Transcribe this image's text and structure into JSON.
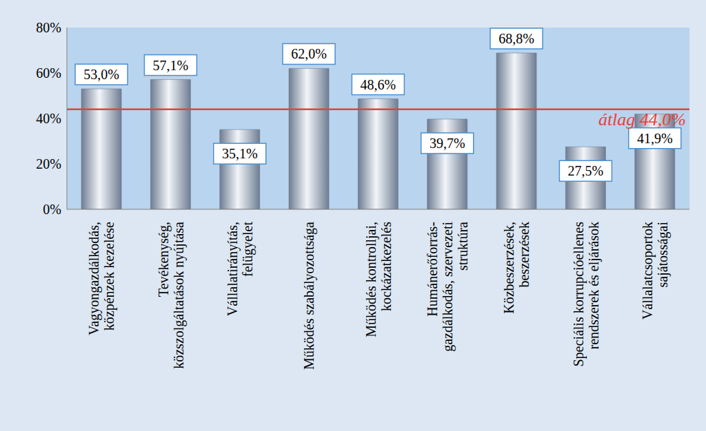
{
  "chart_data": {
    "type": "bar",
    "categories": [
      "Vagyongazdálkodás,\nközpénzek kezelése",
      "Tevékenység,\nközszolgáltatások nyújtása",
      "Vállalatirányítás,\nfelügyelet",
      "Működés szabályozottsága",
      "Működés kontrolljai,\nkockázatkezelés",
      "Humánerőforrás-\ngazdálkodás, szervezeti\nstruktúra",
      "Közbeszerzések,\nbeszerzések",
      "Speciális korrupcióellenes\nrendszerek és eljárások",
      "Vállalatcsoportok\nsajátosságai"
    ],
    "values": [
      53.0,
      57.1,
      35.1,
      62.0,
      48.6,
      39.7,
      68.8,
      27.5,
      41.9
    ],
    "value_labels": [
      "53,0%",
      "57,1%",
      "35,1%",
      "62,0%",
      "48,6%",
      "39,7%",
      "68,8%",
      "27,5%",
      "41,9%"
    ],
    "color": "#6f7d92",
    "ylim": [
      0,
      80
    ],
    "yticks": [
      {
        "value": 0,
        "label": "0%"
      },
      {
        "value": 20,
        "label": "20%"
      },
      {
        "value": 40,
        "label": "40%"
      },
      {
        "value": 60,
        "label": "60%"
      },
      {
        "value": 80,
        "label": "80%"
      }
    ],
    "average": {
      "value": 44.0,
      "label": "átlag 44,0%"
    },
    "grid": false,
    "data_labels": true
  }
}
